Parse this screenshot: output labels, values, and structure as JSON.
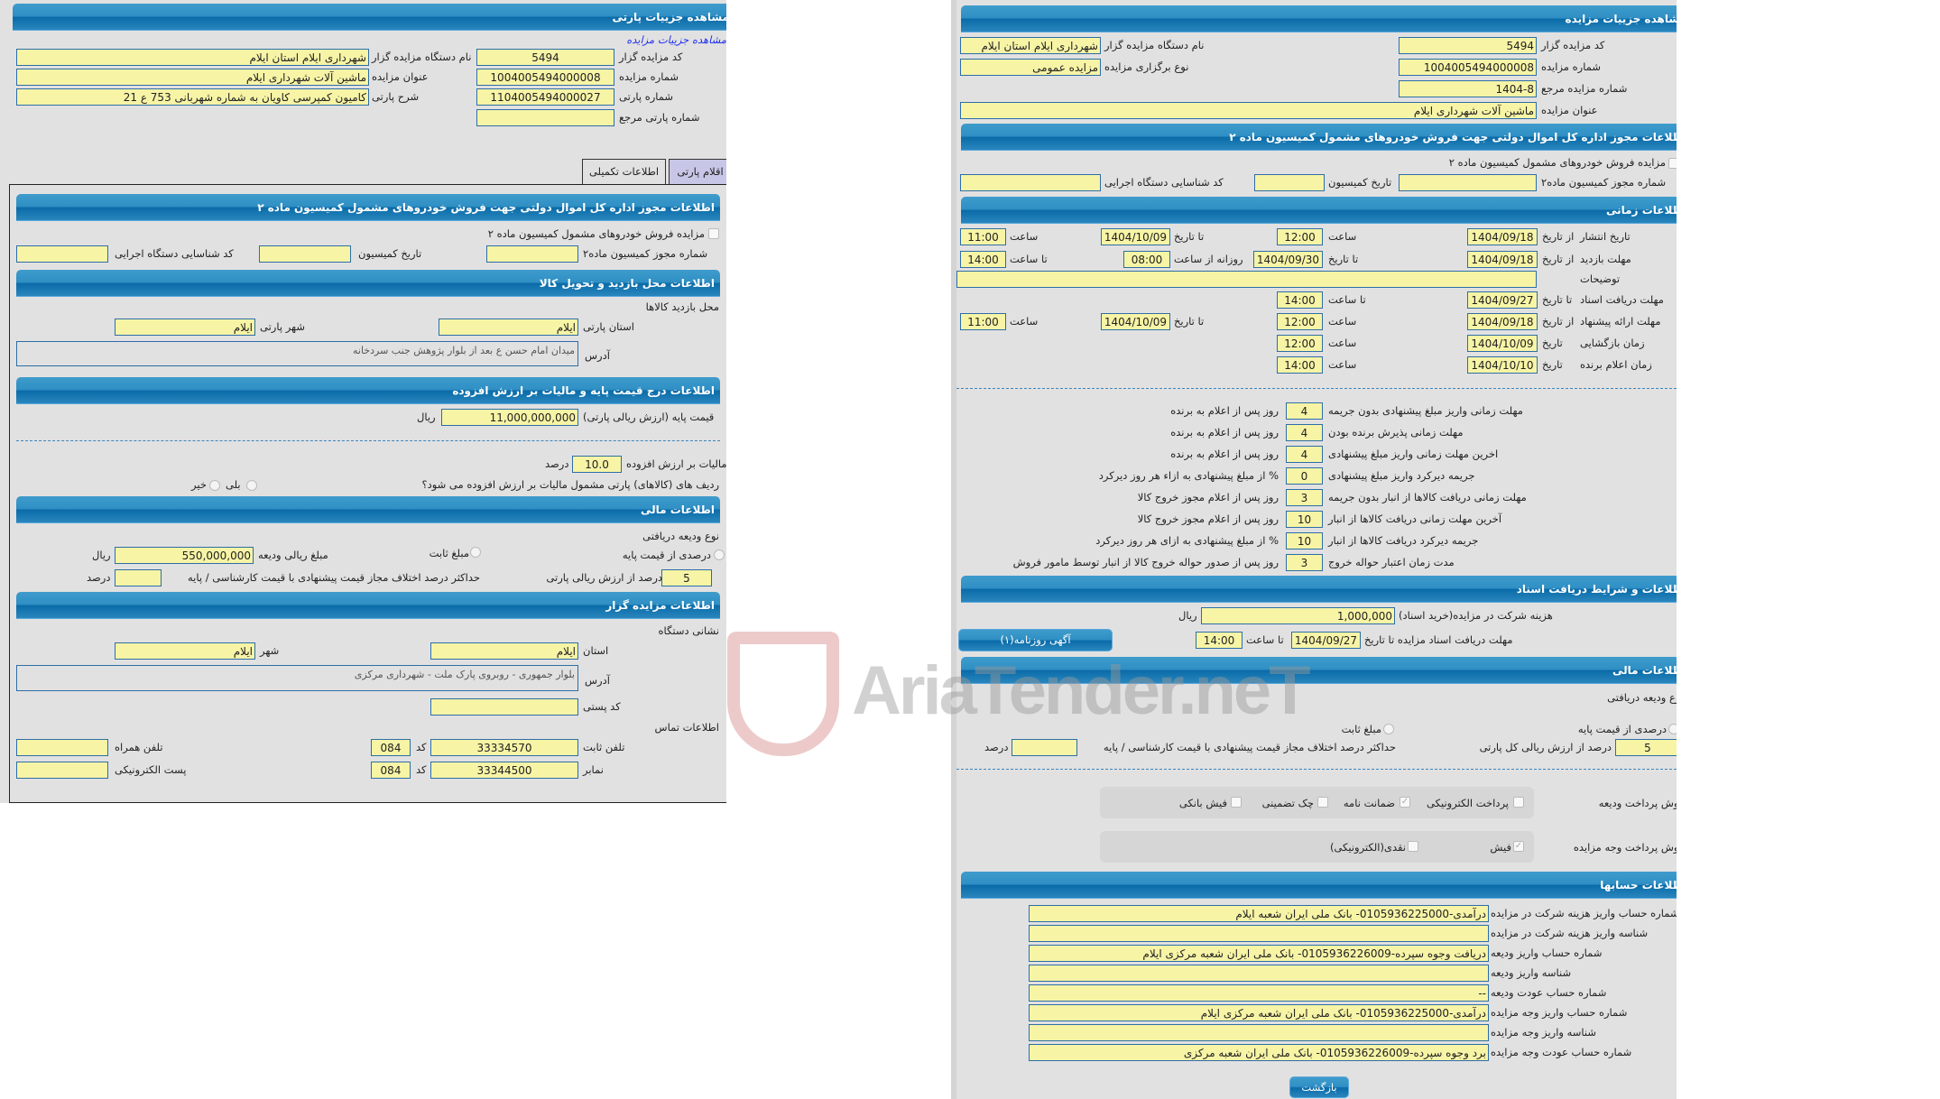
{
  "left": {
    "header": "مشاهده جزییات پارتی",
    "link": "مشاهده جزییات مزایده",
    "fields": [
      {
        "label": "کد مزایده گزار",
        "value": "5494"
      },
      {
        "label": "شماره مزایده",
        "value": "1004005494000008"
      },
      {
        "label": "شماره پارتی",
        "value": "1104005494000027"
      },
      {
        "label": "شماره پارتی مرجع",
        "value": ""
      },
      {
        "label": "نام دستگاه مزایده گزار",
        "value": "شهرداری ایلام استان ایلام"
      },
      {
        "label": "عنوان مزایده",
        "value": "ماشین آلات شهرداری ایلام"
      },
      {
        "label": "شرح پارتی",
        "value": "کامیون کمپرسی کاویان  به شماره شهربانی 753 ع 21"
      }
    ],
    "tabs": [
      {
        "label": "اقلام پارتی"
      },
      {
        "label": "اطلاعات تکمیلی"
      }
    ],
    "permit": {
      "header": "اطلاعات مجوز اداره کل اموال دولتی جهت فروش خودروهای مشمول کمیسیون ماده ۲",
      "checkbox": "مزایده فروش خودروهای مشمول کمیسیون ماده ۲",
      "permit_no": "شماره مجوز کمیسیون ماده۲",
      "date": "تاریخ کمیسیون",
      "agency_id": "کد شناسایی دستگاه اجرایی"
    },
    "visit": {
      "header": "اطلاعات محل بازدید و تحویل کالا",
      "title": "محل بازدید کالاها",
      "province_label": "استان پارتی",
      "province": "ایلام",
      "city_label": "شهر پارتی",
      "city": "ایلام",
      "address_label": "آدرس",
      "address": "میدان امام حسن ع بعد از بلوار پژوهش جنب سردخانه"
    },
    "price": {
      "header": "اطلاعات درج قیمت پایه و مالیات بر ارزش افزوده",
      "base_label": "قیمت پایه (ارزش ریالی پارتی)",
      "base": "11,000,000,000",
      "currency": "ریال",
      "vat_label": "مالیات بر ارزش افزوده",
      "vat": "10.0",
      "percent": "درصد",
      "question": "ردیف های (کالاهای) پارتی مشمول مالیات بر ارزش افزوده می شود؟",
      "yes": "بلی",
      "no": "خیر"
    },
    "finance": {
      "header": "اطلاعات مالی",
      "deposit_type": "نوع ودیعه دریافتی",
      "opt_percent": "درصدی از قیمت پایه",
      "opt_fixed": "مبلغ ثابت",
      "amount_label": "مبلغ ریالی ودیعه",
      "amount": "550,000,000",
      "currency": "ریال",
      "pct_value": "5",
      "pct_label": "درصد از ارزش ریالی پارتی",
      "max_diff_label": "حداکثر درصد اختلاف مجاز قیمت پیشنهادی با قیمت کارشناسی / پایه",
      "max_diff": "",
      "percent": "درصد"
    },
    "auctioneer": {
      "header": "اطلاعات مزایده گزار",
      "address_title": "نشانی دستگاه",
      "province_label": "استان",
      "province": "ایلام",
      "city_label": "شهر",
      "city": "ایلام",
      "address_label": "آدرس",
      "address": "بلوار جمهوری - روبروی پارک ملت - شهرداری مرکزی",
      "postal_label": "کد پستی",
      "postal": "",
      "contact_title": "اطلاعات تماس",
      "phone_label": "تلفن ثابت",
      "phone": "33334570",
      "code_label": "کد",
      "phone_code": "084",
      "mobile_label": "تلفن همراه",
      "mobile": "",
      "fax_label": "نمابر",
      "fax": "33344500",
      "fax_code": "084",
      "email_label": "پست الکترونیکی",
      "email": ""
    }
  },
  "right": {
    "header": "مشاهده جزییات مزایده",
    "fields": [
      {
        "label": "کد مزایده گزار",
        "value": "5494"
      },
      {
        "label": "شماره مزایده",
        "value": "1004005494000008"
      },
      {
        "label": "شماره مزایده مرجع",
        "value": "1404-8"
      },
      {
        "label": "عنوان مزایده",
        "value": "ماشین آلات شهرداری ایلام"
      },
      {
        "label": "نام دستگاه مزایده گزار",
        "value": "شهرداری ایلام استان ایلام"
      },
      {
        "label": "نوع برگزاری مزایده",
        "value": "مزایده عمومی"
      }
    ],
    "permit": {
      "header": "اطلاعات مجوز اداره کل اموال دولتی جهت فروش خودروهای مشمول کمیسیون ماده ۲",
      "checkbox": "مزایده فروش خودروهای مشمول کمیسیون ماده ۲",
      "permit_no": "شماره مجوز کمیسیون ماده۲",
      "date": "تاریخ کمیسیون",
      "agency_id": "کد شناسایی دستگاه اجرایی"
    },
    "time": {
      "header": "اطلاعات زمانی",
      "from_date": "از تاریخ",
      "to_date": "تا تاریخ",
      "date": "تاریخ",
      "hour": "ساعت",
      "to_hour": "تا ساعت",
      "daily_from": "روزانه از ساعت",
      "notes": "توضیحات",
      "publish": {
        "label": "تاریخ انتشار",
        "from": "1404/09/18",
        "from_time": "12:00",
        "to": "1404/10/09",
        "to_time": "11:00"
      },
      "visit": {
        "label": "مهلت بازدید",
        "from": "1404/09/18",
        "to": "1404/09/30",
        "daily_from": "08:00",
        "daily_to": "14:00"
      },
      "docs": {
        "label": "مهلت دریافت اسناد",
        "to": "1404/09/27",
        "to_time": "14:00"
      },
      "offer": {
        "label": "مهلت ارائه پیشنهاد",
        "from": "1404/09/18",
        "from_time": "12:00",
        "to": "1404/10/09",
        "to_time": "11:00"
      },
      "opening": {
        "label": "زمان بازگشایی",
        "date": "1404/10/09",
        "time": "12:00"
      },
      "winner": {
        "label": "زمان اعلام برنده",
        "date": "1404/10/10",
        "time": "14:00"
      }
    },
    "deadlines": [
      {
        "label": "مهلت زمانی واریز مبلغ پیشنهادی بدون جریمه",
        "value": "4",
        "suffix": "روز پس از اعلام به برنده"
      },
      {
        "label": "مهلت زمانی پذیرش برنده بودن",
        "value": "4",
        "suffix": "روز پس از اعلام به برنده"
      },
      {
        "label": "اخرین مهلت زمانی واریز مبلغ پیشنهادی",
        "value": "4",
        "suffix": "روز پس از اعلام به برنده"
      },
      {
        "label": "جریمه دیرکرد واریز مبلغ پیشنهادی",
        "value": "0",
        "suffix": "% از مبلغ پیشنهادی به ازاء هر روز دیرکرد"
      },
      {
        "label": "مهلت زمانی دریافت کالاها از انبار بدون جریمه",
        "value": "3",
        "suffix": "روز پس از اعلام مجوز خروج کالا"
      },
      {
        "label": "آخرین مهلت زمانی دریافت کالاها از انبار",
        "value": "10",
        "suffix": "روز پس از اعلام مجوز خروج کالا"
      },
      {
        "label": "جریمه دیرکرد دریافت کالاها از انبار",
        "value": "10",
        "suffix": "% از مبلغ پیشنهادی به ازای هر روز دیرکرد"
      },
      {
        "label": "مدت زمان اعتبار حواله خروج",
        "value": "3",
        "suffix": "روز پس از صدور حواله خروج کالا از انبار توسط مامور فروش"
      }
    ],
    "documents": {
      "header": "اطلاعات و شرایط دریافت اسناد",
      "fee_label": "هزینه شرکت در مزایده(خرید اسناد)",
      "fee": "1,000,000",
      "currency": "ریال",
      "deadline_label": "مهلت دریافت اسناد مزایده تا تاریخ",
      "deadline": "1404/09/27",
      "to_hour": "تا ساعت",
      "deadline_time": "14:00",
      "ad_button": "آگهی روزنامه(۱)"
    },
    "finance": {
      "header": "اطلاعات مالی",
      "deposit_type": "نوع ودیعه دریافتی",
      "opt_percent": "درصدی از قیمت پایه",
      "opt_fixed": "مبلغ ثابت",
      "pct_value": "5",
      "pct_label": "درصد از ارزش ریالی کل پارتی",
      "max_diff_label": "حداکثر درصد اختلاف مجاز قیمت پیشنهادی با قیمت کارشناسی / پایه",
      "max_diff": "",
      "percent": "درصد",
      "deposit_method_label": "روش پرداخت ودیعه",
      "deposit_methods": [
        {
          "label": "پرداخت الکترونیکی",
          "checked": false
        },
        {
          "label": "ضمانت نامه",
          "checked": true
        },
        {
          "label": "چک تضمینی",
          "checked": false
        },
        {
          "label": "فیش بانکی",
          "checked": false
        }
      ],
      "payment_method_label": "روش پرداخت وجه مزایده",
      "payment_methods": [
        {
          "label": "فیش",
          "checked": true
        },
        {
          "label": "نقدی(الکترونیکی)",
          "checked": false
        }
      ]
    },
    "accounts": {
      "header": "اطلاعات حسابها",
      "rows": [
        {
          "label": "شماره حساب واریز هزینه شرکت در مزایده",
          "value": "درآمدی-0105936225000- بانک ملی ایران شعبه ایلام"
        },
        {
          "label": "شناسه واریز هزینه شرکت در مزایده",
          "value": ""
        },
        {
          "label": "شماره حساب واریز ودیعه",
          "value": "دریافت وجوه سپرده-0105936226009- بانک ملی ایران شعبه مرکزی ایلام"
        },
        {
          "label": "شناسه واریز ودیعه",
          "value": ""
        },
        {
          "label": "شماره حساب عودت ودیعه",
          "value": "--"
        },
        {
          "label": "شماره حساب واریز وجه مزایده",
          "value": "درآمدی-0105936225000- بانک ملی ایران شعبه مرکزی ایلام"
        },
        {
          "label": "شناسه واریز وجه مزایده",
          "value": ""
        },
        {
          "label": "شماره حساب عودت وجه مزایده",
          "value": "برد وجوه سپرده-0105936226009- بانک ملی ایران شعبه مرکزی"
        }
      ]
    },
    "back_button": "بازگشت"
  },
  "watermark": "AriaTender.neT",
  "colors": {
    "header": "#1f7fbb",
    "input_bg": "#f7f4a6",
    "input_border": "#2c6ea6",
    "panel_bg": "#e2e1e1",
    "tab_inactive": "#c7c6e6"
  }
}
